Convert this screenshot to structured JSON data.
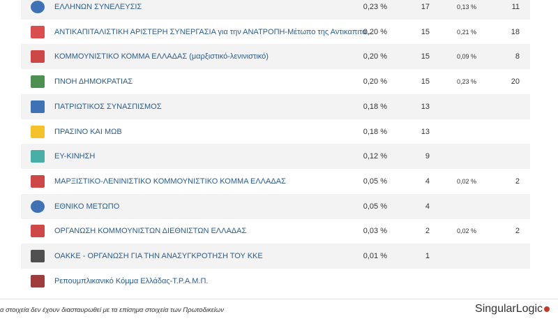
{
  "table": {
    "rows": [
      [
        "ΕΛΛΗΝΩΝ ΣΥΝΕΛΕΥΣΙΣ",
        "0,23 %",
        "17",
        "0,13 %",
        "11"
      ],
      [
        "ΑΝΤΙΚΑΠΙΤΑΛΙΣΤΙΚΗ ΑΡΙΣΤΕΡΗ ΣΥΝΕΡΓΑΣΙΑ για την ΑΝΑΤΡΟΠΗ-Μέτωπο της Αντικαπιτα...",
        "0,20 %",
        "15",
        "0,21 %",
        "18"
      ],
      [
        "ΚΟΜΜΟΥΝΙΣΤΙΚΟ ΚΟΜΜΑ ΕΛΛΑΔΑΣ (μαρξιστικό-λενινιστικό)",
        "0,20 %",
        "15",
        "0,09 %",
        "8"
      ],
      [
        "ΠΝΟΗ ΔΗΜΟΚΡΑΤΙΑΣ",
        "0,20 %",
        "15",
        "0,23 %",
        "20"
      ],
      [
        "ΠΑΤΡΙΩΤΙΚΟΣ ΣΥΝΑΣΠΙΣΜΟΣ",
        "0,18 %",
        "13",
        null,
        null
      ],
      [
        "ΠΡΑΣΙΝΟ ΚΑΙ ΜΩΒ",
        "0,18 %",
        "13",
        null,
        null
      ],
      [
        "ΕΥ-ΚΙΝΗΣΗ",
        "0,12 %",
        "9",
        null,
        null
      ],
      [
        "ΜΑΡΞΙΣΤΙΚΟ-ΛΕΝΙΝΙΣΤΙΚΟ ΚΟΜΜΟΥΝΙΣΤΙΚΟ ΚΟΜΜΑ ΕΛΛΑΔΑΣ",
        "0,05 %",
        "4",
        "0,02 %",
        "2"
      ],
      [
        "ΕΘΝΙΚΟ ΜΕΤΩΠΟ",
        "0,05 %",
        "4",
        null,
        null
      ],
      [
        "ΟΡΓΑΝΩΣΗ ΚΟΜΜΟΥΝΙΣΤΩΝ ΔΙΕΘΝΙΣΤΩΝ ΕΛΛΑΔΑΣ",
        "0,03 %",
        "2",
        "0,02 %",
        "2"
      ],
      [
        "ΟΑΚΚΕ - ΟΡΓΑΝΩΣΗ ΓΙΑ ΤΗΝ ΑΝΑΣΥΓΚΡΟΤΗΣΗ ΤΟΥ ΚΚΕ",
        "0,01 %",
        "1",
        null,
        null
      ],
      [
        "Ρεπουμπλικανικό Κόμμα Ελλάδας-Τ.Ρ.Α.Μ.Π.",
        null,
        null,
        null,
        null
      ]
    ]
  },
  "footer": {
    "note": "α στοιχεία δεν έχουν διασταυρωθεί με τα επίσημα στοιχεία των Πρωτοδικείων",
    "brand": "SingularLogic"
  }
}
